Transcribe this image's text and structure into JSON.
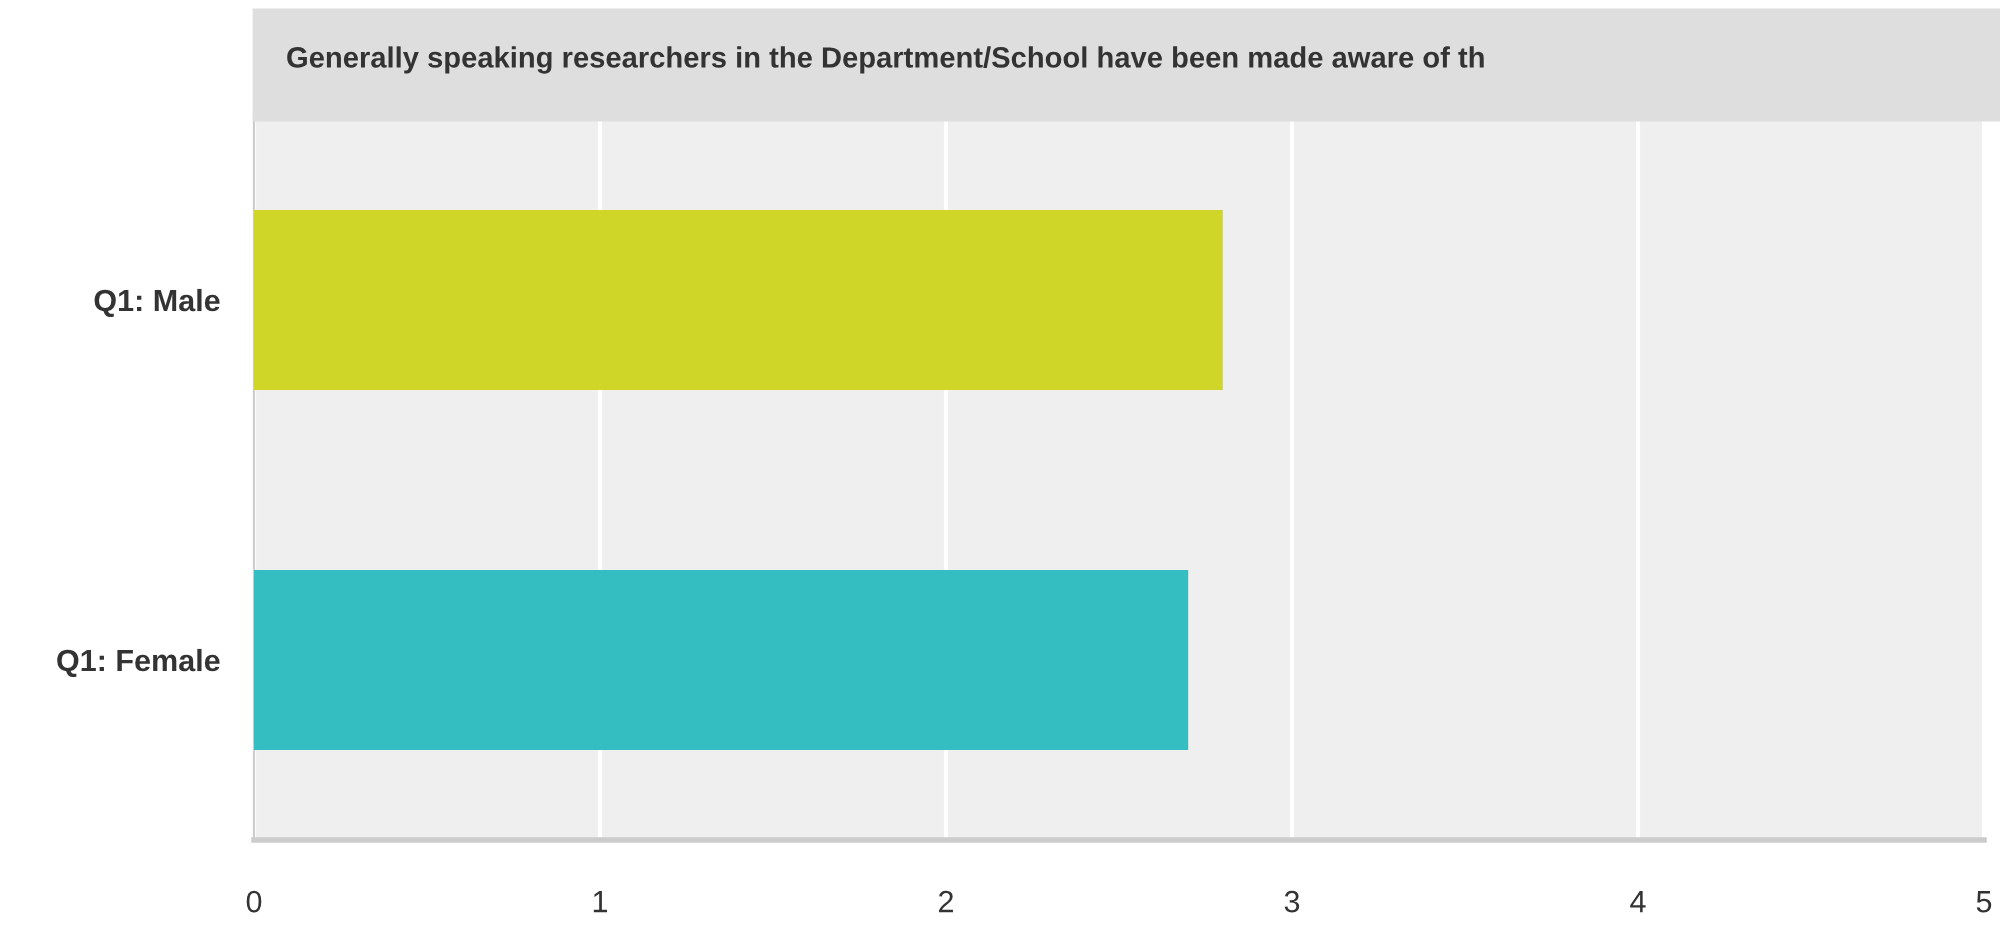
{
  "chart_data": {
    "type": "bar",
    "orientation": "horizontal",
    "title": "Generally speaking researchers in the Department/School have been made aware of th",
    "categories": [
      "Q1: Male",
      "Q1: Female"
    ],
    "values": [
      2.8,
      2.7
    ],
    "colors": [
      "#cfd628",
      "#35bec1"
    ],
    "xlim": [
      0,
      5
    ],
    "xticks": [
      0,
      1,
      2,
      3,
      4,
      5
    ],
    "grid": "x"
  }
}
